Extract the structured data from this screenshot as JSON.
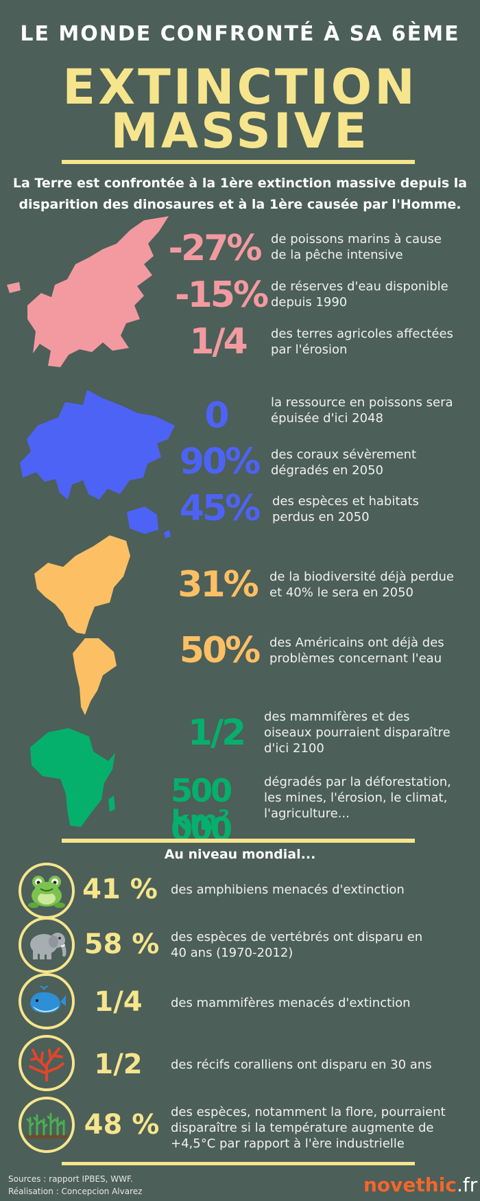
{
  "header": {
    "top": "LE MONDE CONFRONTÉ À SA 6ÈME",
    "big1": "EXTINCTION",
    "big2": "MASSIVE",
    "intro1": "La Terre est confrontée à la 1ère extinction massive depuis la",
    "intro2": "disparition des dinosaures et à la 1ère causée par l'Homme."
  },
  "europe": {
    "stats": [
      {
        "value": "-27%",
        "line1": "de poissons marins à cause",
        "line2": "de la pêche intensive"
      },
      {
        "value": "-15%",
        "line1": "de réserves d'eau disponible",
        "line2": "depuis 1990"
      },
      {
        "value": "1/4",
        "line1": "des terres agricoles affectées",
        "line2": "par l'érosion"
      }
    ]
  },
  "asia": {
    "stats": [
      {
        "value": "0",
        "line1": "la ressource en poissons sera",
        "line2": "épuisée d'ici 2048"
      },
      {
        "value": "90%",
        "line1": "des coraux sévèrement",
        "line2": "dégradés en 2050"
      },
      {
        "value": "45%",
        "line1": "des espèces et habitats",
        "line2": "perdus en 2050"
      }
    ]
  },
  "americas": {
    "stats": [
      {
        "value": "31%",
        "line1": "de la biodiversité déjà perdue",
        "line2": "et 40% le sera en 2050"
      },
      {
        "value": "50%",
        "line1": "des Américains ont déjà des",
        "line2": "problèmes concernant l'eau"
      }
    ]
  },
  "africa": {
    "stats": [
      {
        "value": "1/2",
        "line1": "des mammifères et des",
        "line2": "oiseaux pourraient disparaître",
        "line3": "d'ici 2100"
      },
      {
        "value": "500 000",
        "unit": "km²",
        "line1": "dégradés par la déforestation,",
        "line2": "les mines, l'érosion, le climat,",
        "line3": "l'agriculture..."
      }
    ]
  },
  "global": {
    "heading": "Au niveau mondial...",
    "items": [
      {
        "icon": "frog-icon",
        "value": "41 %",
        "line1": "des amphibiens menacés d'extinction",
        "line2": ""
      },
      {
        "icon": "elephant-icon",
        "value": "58 %",
        "line1": "des espèces de vertébrés ont disparu en",
        "line2": "40 ans (1970-2012)"
      },
      {
        "icon": "whale-icon",
        "value": "1/4",
        "line1": "des mammifères menacés d'extinction",
        "line2": ""
      },
      {
        "icon": "coral-icon",
        "value": "1/2",
        "line1": "des récifs coralliens ont disparu en 30 ans",
        "line2": ""
      },
      {
        "icon": "plants-icon",
        "value": "48 %",
        "line1": "des espèces, notamment la flore, pourraient",
        "line2": "disparaître si la température augmente de",
        "line3": "+4,5°C par rapport à l'ère industrielle"
      }
    ]
  },
  "footer": {
    "sources": "Sources : rapport IPBES, WWF.",
    "credit": "Réalisation : Concepcion Alvarez",
    "brand": "novethic",
    "brand_tld": ".fr"
  },
  "colors": {
    "background": "#4c5f58",
    "accent": "#f6e58d",
    "europe": "#f39aa1",
    "asia": "#4d63f5",
    "americas": "#fdbf64",
    "africa": "#05b06c"
  }
}
